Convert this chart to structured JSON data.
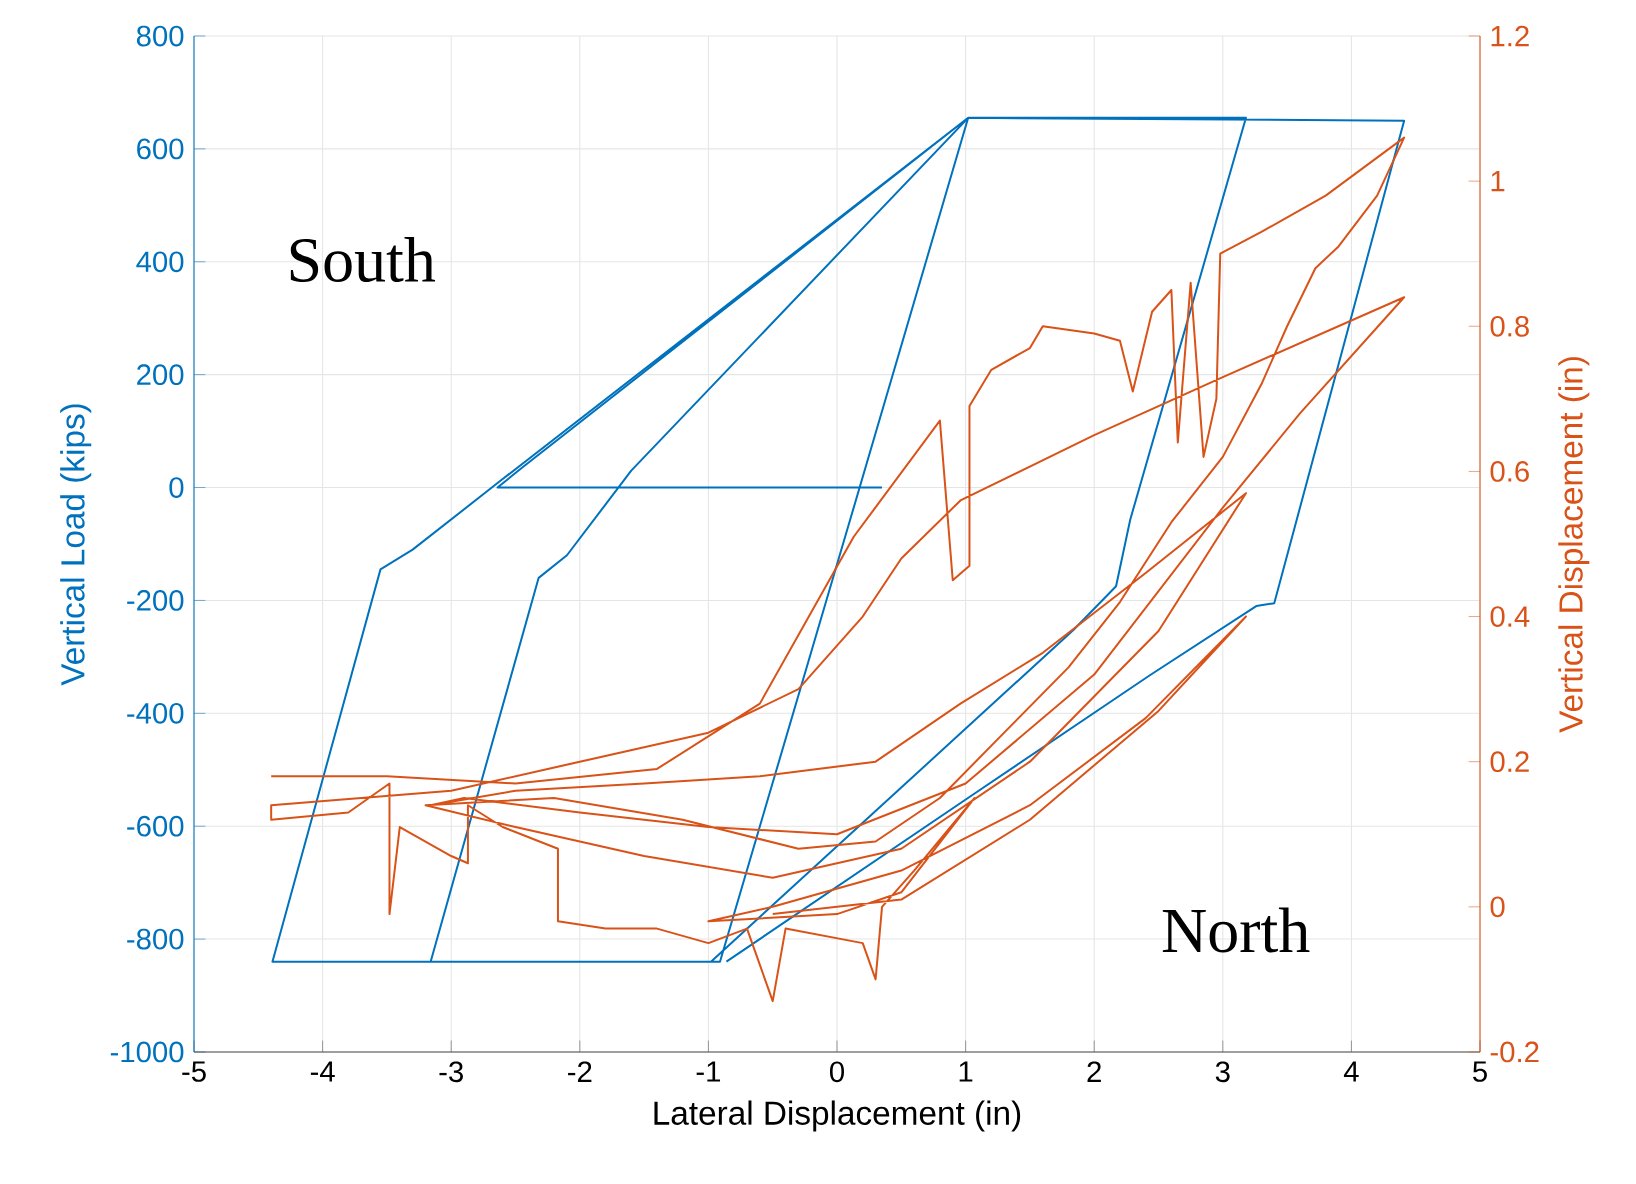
{
  "chart_data": {
    "type": "line",
    "xlabel": "Lateral Displacement (in)",
    "ylabel": "Vertical Load (kips)",
    "y2label": "Vertical Displacement (in)",
    "annotations": [
      "South",
      "North"
    ],
    "xlim": [
      -5,
      5
    ],
    "xticks": [
      -5,
      -4,
      -3,
      -2,
      -1,
      0,
      1,
      2,
      3,
      4,
      5
    ],
    "ylim": [
      -1000,
      800
    ],
    "yticks": [
      -1000,
      -800,
      -600,
      -400,
      -200,
      0,
      200,
      400,
      600,
      800
    ],
    "y2lim": [
      -0.2,
      1.2
    ],
    "y2ticks": [
      -0.2,
      0,
      0.2,
      0.4,
      0.6,
      0.8,
      1,
      1.2
    ],
    "grid": true,
    "series": [
      {
        "color": "#0072bd",
        "x": [
          0.35,
          -2.64,
          -2.45,
          1.02,
          3.18,
          2.28,
          2.17,
          1.84,
          -0.98,
          -4.39,
          -3.55,
          -3.3,
          -2.6,
          1.02,
          0.07,
          -0.91,
          -3.16,
          -2.32,
          -2.1,
          -1.6,
          1.02,
          4.41,
          3.4,
          3.26,
          2.43,
          1.07,
          -0.86
        ],
        "values": [
          0,
          0,
          35,
          655,
          655,
          -57,
          -175,
          -252,
          -840,
          -840,
          -145,
          -110,
          15,
          655,
          -82,
          -840,
          -840,
          -160,
          -120,
          30,
          655,
          650,
          -205,
          -210,
          -333,
          -542,
          -840
        ]
      },
      {
        "color": "#d95319",
        "axis": "y2",
        "x": [
          -4.4,
          -3.5,
          -2.5,
          -1.4,
          -0.6,
          0.13,
          0.8,
          0.9,
          1.03,
          1.03,
          1.2,
          1.5,
          1.6,
          2.0,
          2.2,
          2.3,
          2.45,
          2.6,
          2.65,
          2.75,
          2.85,
          2.95,
          2.98,
          3.3,
          3.8,
          4.41,
          4.2,
          3.9,
          3.72,
          3.5,
          3.3,
          3.0,
          2.6,
          2.2,
          1.8,
          1.3,
          0.8,
          0.3,
          -0.3,
          -1.2,
          -2.2,
          -3.2,
          -2.5,
          -1.5,
          -0.5,
          0.5,
          1.5,
          2.5,
          3.18,
          2.4,
          1.6,
          0.96,
          0.3,
          -0.6,
          -1.5,
          -2.5,
          -3.16,
          -2.9,
          -2.0,
          -1.0,
          0,
          1.0,
          2.0,
          3.0,
          3.6,
          4.41,
          3.0,
          2.0,
          0.96,
          0.5,
          0.2,
          -0.3,
          -1.0,
          -2.0,
          -3.0,
          -4.4,
          -4.4,
          -3.8,
          -3.48,
          -3.48,
          -3.4,
          -3.0,
          -2.87,
          -2.87,
          -2.6,
          -2.17,
          -2.17,
          -1.8,
          -1.4,
          -1.0,
          -0.7,
          -0.5,
          -0.4,
          -0.1,
          0.2,
          0.3,
          0.35,
          0.6,
          1.07,
          0.5,
          0,
          -1.0,
          -0.5,
          0.5,
          1.5,
          2.4,
          3.18,
          2.5,
          1.5,
          0.5,
          -0.5
        ],
        "values": [
          0.18,
          0.18,
          0.17,
          0.19,
          0.28,
          0.51,
          0.67,
          0.45,
          0.47,
          0.69,
          0.74,
          0.77,
          0.8,
          0.79,
          0.78,
          0.71,
          0.82,
          0.85,
          0.64,
          0.86,
          0.62,
          0.7,
          0.9,
          0.93,
          0.98,
          1.06,
          0.98,
          0.91,
          0.88,
          0.8,
          0.72,
          0.62,
          0.53,
          0.42,
          0.33,
          0.24,
          0.15,
          0.09,
          0.08,
          0.12,
          0.15,
          0.14,
          0.11,
          0.07,
          0.04,
          0.08,
          0.2,
          0.38,
          0.57,
          0.46,
          0.35,
          0.28,
          0.2,
          0.18,
          0.17,
          0.16,
          0.14,
          0.15,
          0.13,
          0.11,
          0.1,
          0.17,
          0.32,
          0.55,
          0.68,
          0.84,
          0.73,
          0.65,
          0.56,
          0.48,
          0.4,
          0.3,
          0.24,
          0.2,
          0.16,
          0.14,
          0.12,
          0.13,
          0.17,
          -0.01,
          0.11,
          0.07,
          0.06,
          0.14,
          0.11,
          0.08,
          -0.02,
          -0.03,
          -0.03,
          -0.05,
          -0.03,
          -0.13,
          -0.03,
          -0.04,
          -0.05,
          -0.1,
          0.0,
          0.05,
          0.15,
          0.02,
          -0.01,
          -0.02,
          0.0,
          0.05,
          0.14,
          0.26,
          0.4,
          0.27,
          0.12,
          0.01,
          -0.01
        ]
      }
    ]
  }
}
